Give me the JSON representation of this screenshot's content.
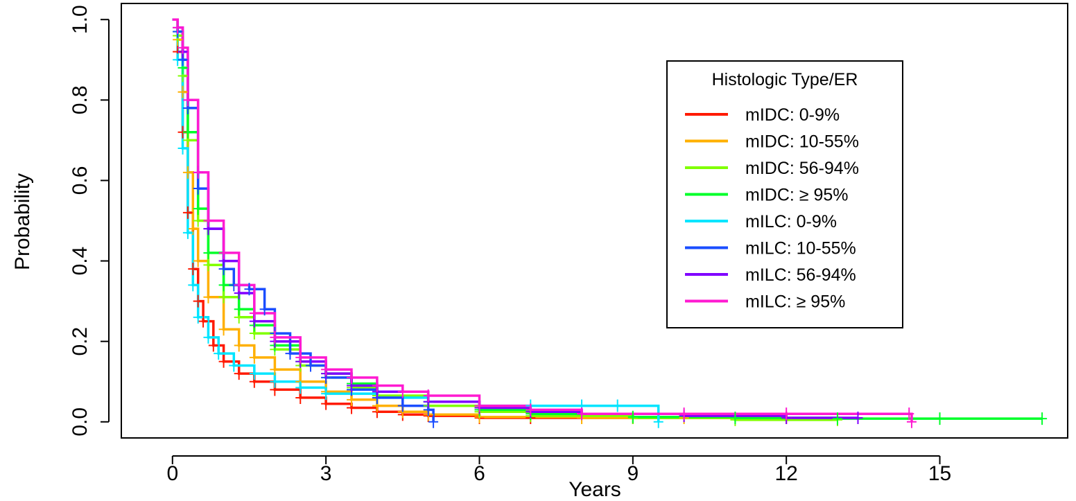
{
  "chart_data": {
    "type": "line",
    "title": "",
    "xlabel": "Years",
    "ylabel": "Probability",
    "xlim": [
      -1,
      17.5
    ],
    "ylim": [
      -0.04,
      1.04
    ],
    "xticks": [
      0,
      3,
      6,
      9,
      12,
      15
    ],
    "yticks": [
      0.0,
      0.2,
      0.4,
      0.6,
      0.8,
      1.0
    ],
    "ytick_labels": [
      "0.0",
      "0.2",
      "0.4",
      "0.6",
      "0.8",
      "1.0"
    ],
    "grid": false,
    "legend": {
      "title": "Histologic Type/ER",
      "position": "top-right"
    },
    "series": [
      {
        "name": "mIDC: 0-9%",
        "color": "#ff1a00",
        "x": [
          0,
          0.1,
          0.2,
          0.3,
          0.4,
          0.5,
          0.6,
          0.8,
          1.0,
          1.3,
          1.6,
          2.0,
          2.5,
          3.0,
          3.5,
          4.0,
          4.5,
          5.0,
          6.0,
          7.0,
          9.0,
          12.0
        ],
        "y": [
          1.0,
          0.92,
          0.72,
          0.52,
          0.38,
          0.3,
          0.25,
          0.19,
          0.15,
          0.12,
          0.1,
          0.08,
          0.06,
          0.045,
          0.035,
          0.025,
          0.018,
          0.015,
          0.01,
          0.01,
          0.01,
          0.01
        ]
      },
      {
        "name": "mIDC: 10-55%",
        "color": "#ffb000",
        "x": [
          0,
          0.1,
          0.2,
          0.3,
          0.4,
          0.5,
          0.7,
          1.0,
          1.3,
          1.6,
          2.0,
          2.5,
          3.0,
          3.5,
          4.0,
          4.5,
          5.0,
          6.0,
          8.0,
          10.0,
          12.0
        ],
        "y": [
          1.0,
          0.95,
          0.82,
          0.62,
          0.48,
          0.4,
          0.31,
          0.23,
          0.19,
          0.16,
          0.13,
          0.1,
          0.075,
          0.055,
          0.04,
          0.025,
          0.018,
          0.012,
          0.01,
          0.01,
          0.01
        ]
      },
      {
        "name": "mIDC: 56-94%",
        "color": "#80ff00",
        "x": [
          0,
          0.1,
          0.2,
          0.3,
          0.5,
          0.7,
          1.0,
          1.3,
          1.6,
          2.0,
          2.5,
          3.0,
          3.5,
          4.0,
          5.0,
          6.0,
          7.0,
          9.0,
          11.0,
          13.0
        ],
        "y": [
          1.0,
          0.96,
          0.86,
          0.7,
          0.5,
          0.39,
          0.31,
          0.26,
          0.22,
          0.18,
          0.14,
          0.11,
          0.085,
          0.065,
          0.04,
          0.025,
          0.015,
          0.01,
          0.005,
          0.005
        ]
      },
      {
        "name": "mIDC: ≥ 95%",
        "color": "#00ff2a",
        "x": [
          0,
          0.1,
          0.2,
          0.3,
          0.5,
          0.7,
          1.0,
          1.3,
          1.6,
          2.0,
          2.5,
          3.0,
          3.5,
          4.0,
          5.0,
          6.0,
          7.0,
          9.0,
          11.0,
          13.0,
          15.0,
          17.0
        ],
        "y": [
          1.0,
          0.97,
          0.88,
          0.72,
          0.53,
          0.42,
          0.34,
          0.28,
          0.24,
          0.19,
          0.15,
          0.12,
          0.095,
          0.075,
          0.05,
          0.03,
          0.02,
          0.012,
          0.01,
          0.008,
          0.008,
          0.008
        ]
      },
      {
        "name": "mILC: 0-9%",
        "color": "#00e5ff",
        "x": [
          0,
          0.1,
          0.2,
          0.3,
          0.4,
          0.5,
          0.7,
          0.9,
          1.2,
          1.6,
          2.0,
          2.5,
          3.0,
          4.0,
          5.0,
          6.0,
          7.0,
          8.0,
          8.7,
          9.5
        ],
        "y": [
          1.0,
          0.9,
          0.68,
          0.47,
          0.34,
          0.26,
          0.21,
          0.17,
          0.14,
          0.12,
          0.1,
          0.085,
          0.07,
          0.06,
          0.05,
          0.04,
          0.04,
          0.04,
          0.04,
          0.0
        ]
      },
      {
        "name": "mILC: 10-55%",
        "color": "#1a4dff",
        "x": [
          0,
          0.1,
          0.2,
          0.3,
          0.5,
          0.7,
          1.0,
          1.2,
          1.5,
          1.8,
          2.0,
          2.3,
          2.7,
          3.0,
          3.5,
          4.0,
          4.5,
          5.0,
          5.1
        ],
        "y": [
          1.0,
          0.97,
          0.9,
          0.78,
          0.58,
          0.48,
          0.38,
          0.34,
          0.33,
          0.28,
          0.22,
          0.17,
          0.14,
          0.11,
          0.08,
          0.06,
          0.04,
          0.03,
          0.0
        ]
      },
      {
        "name": "mILC: 56-94%",
        "color": "#8000ff",
        "x": [
          0,
          0.1,
          0.2,
          0.3,
          0.5,
          0.7,
          1.0,
          1.3,
          1.6,
          2.0,
          2.5,
          3.0,
          3.5,
          4.0,
          5.0,
          6.0,
          7.0,
          8.0,
          10.0,
          12.0,
          13.4
        ],
        "y": [
          1.0,
          0.98,
          0.92,
          0.8,
          0.62,
          0.48,
          0.4,
          0.32,
          0.25,
          0.2,
          0.15,
          0.12,
          0.09,
          0.075,
          0.05,
          0.035,
          0.025,
          0.02,
          0.015,
          0.01,
          0.01
        ]
      },
      {
        "name": "mILC: ≥ 95%",
        "color": "#ff1ad1",
        "x": [
          0,
          0.1,
          0.2,
          0.3,
          0.5,
          0.7,
          1.0,
          1.3,
          1.6,
          2.0,
          2.5,
          3.0,
          3.5,
          4.0,
          4.5,
          5.0,
          6.0,
          7.0,
          8.0,
          10.0,
          12.0,
          14.4,
          14.45
        ],
        "y": [
          1.0,
          0.98,
          0.93,
          0.8,
          0.62,
          0.5,
          0.42,
          0.34,
          0.27,
          0.21,
          0.16,
          0.13,
          0.11,
          0.09,
          0.075,
          0.065,
          0.04,
          0.03,
          0.02,
          0.02,
          0.02,
          0.02,
          0.0
        ]
      }
    ]
  }
}
